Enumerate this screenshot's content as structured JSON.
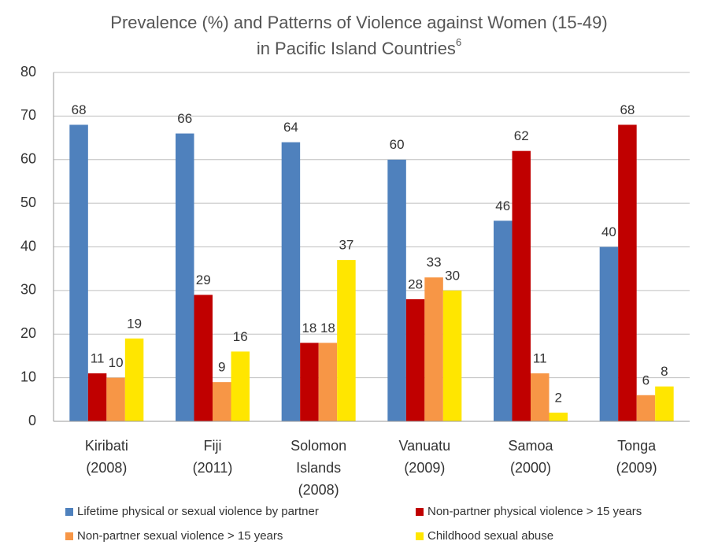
{
  "chart_data": {
    "type": "bar",
    "title": [
      "Prevalence (%) and Patterns of Violence against Women (15-49)",
      "in Pacific Island Countries"
    ],
    "title_superscript": "6",
    "categories": [
      [
        "Kiribati",
        "(2008)"
      ],
      [
        "Fiji",
        "(2011)"
      ],
      [
        "Solomon",
        "Islands",
        "(2008)"
      ],
      [
        "Vanuatu",
        "(2009)"
      ],
      [
        "Samoa",
        "(2000)"
      ],
      [
        "Tonga",
        "(2009)"
      ]
    ],
    "series": [
      {
        "name": "Lifetime physical or sexual violence by partner",
        "color": "#4f81bd",
        "values": [
          68,
          66,
          64,
          60,
          46,
          40
        ]
      },
      {
        "name": "Non-partner physical violence > 15 years",
        "color": "#c00000",
        "values": [
          11,
          29,
          18,
          28,
          62,
          68
        ]
      },
      {
        "name": "Non-partner sexual violence > 15 years",
        "color": "#f79646",
        "values": [
          10,
          9,
          18,
          33,
          11,
          6
        ]
      },
      {
        "name": "Childhood sexual abuse",
        "color": "#ffe600",
        "values": [
          19,
          16,
          37,
          30,
          2,
          8
        ]
      }
    ],
    "ylim": [
      0,
      80
    ],
    "yticks": [
      0,
      10,
      20,
      30,
      40,
      50,
      60,
      70,
      80
    ],
    "grid": true,
    "legend": "bottom"
  }
}
